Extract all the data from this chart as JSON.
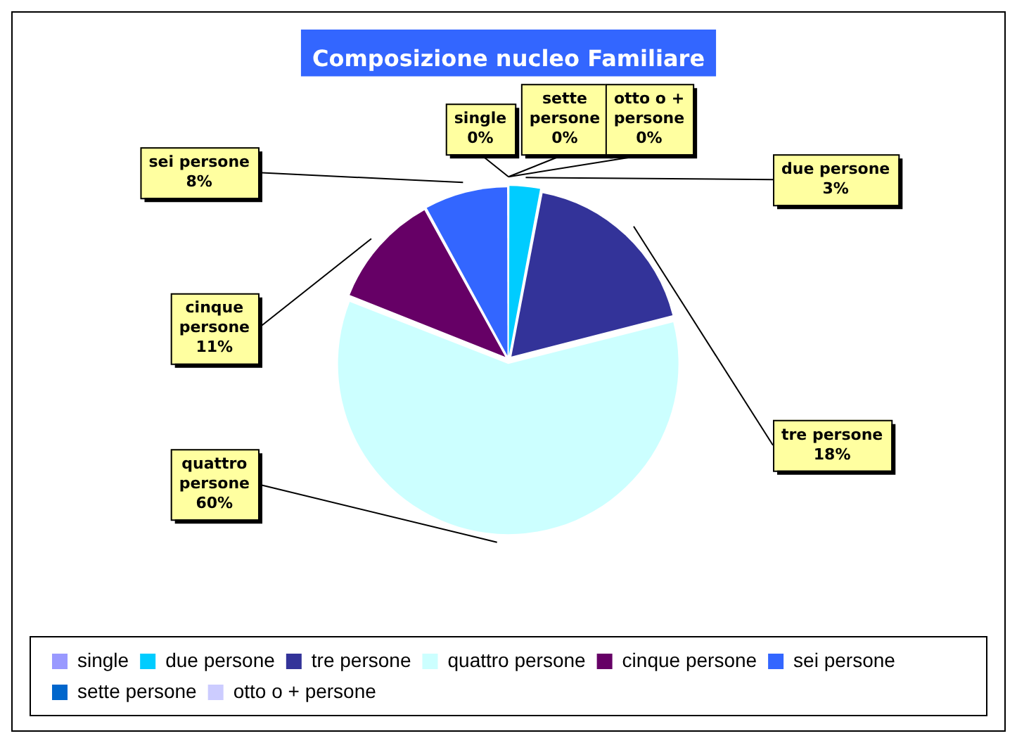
{
  "chart_data": {
    "type": "pie",
    "title": "Composizione nucleo Familiare",
    "categories": [
      "single",
      "due persone",
      "tre persone",
      "quattro persone",
      "cinque persone",
      "sei persone",
      "sette persone",
      "otto o + persone"
    ],
    "values": [
      0,
      3,
      18,
      60,
      11,
      8,
      0,
      0
    ],
    "value_labels": [
      "0%",
      "3%",
      "18%",
      "60%",
      "11%",
      "8%",
      "0%",
      "0%"
    ],
    "colors": [
      "#9999ff",
      "#00ccff",
      "#333399",
      "#ccffff",
      "#660066",
      "#3366ff",
      "#0066cc",
      "#ccccff"
    ],
    "legend": "bottom"
  }
}
